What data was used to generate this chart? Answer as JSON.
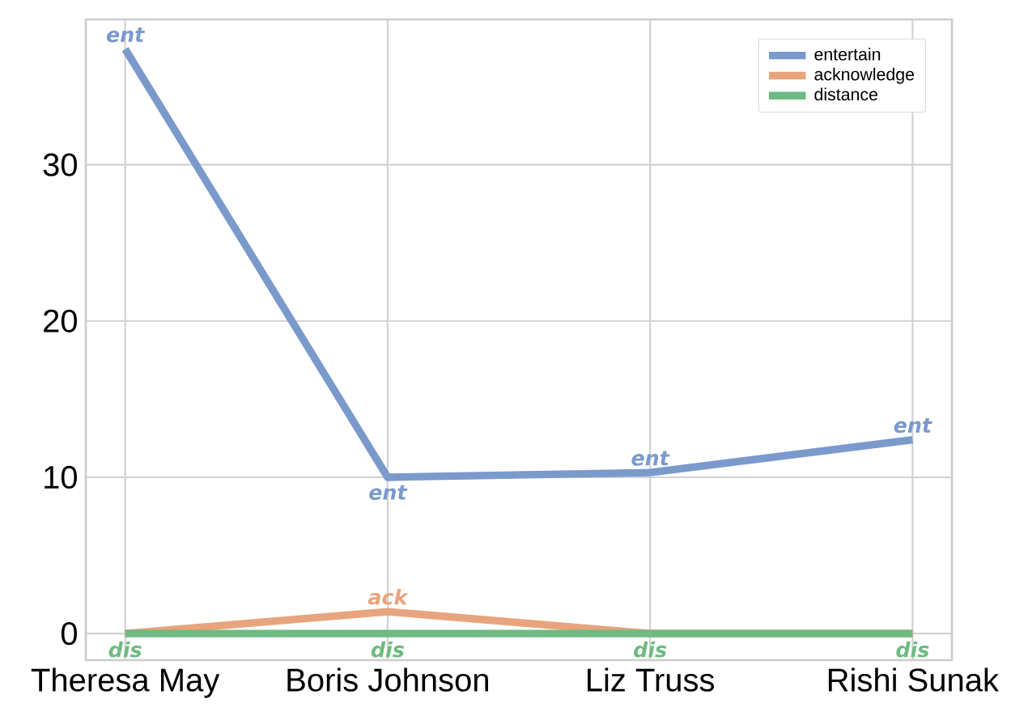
{
  "chart_data": {
    "type": "line",
    "categories": [
      "Theresa May",
      "Boris Johnson",
      "Liz Truss",
      "Rishi Sunak"
    ],
    "series": [
      {
        "name": "entertain",
        "color": "#7b9acc",
        "values": [
          37.4,
          10.0,
          10.3,
          12.4
        ]
      },
      {
        "name": "acknowledge",
        "color": "#e8a47c",
        "values": [
          0,
          1.4,
          0,
          0
        ]
      },
      {
        "name": "distance",
        "color": "#6dbb80",
        "values": [
          0,
          0,
          0,
          0
        ]
      }
    ],
    "ylim": [
      -1.7,
      39.3
    ],
    "yticks": [
      0,
      10,
      20,
      30
    ],
    "grid": true,
    "legend": "top right",
    "annotations": [
      {
        "text": "ent",
        "x": "Theresa May",
        "y": 37.4
      },
      {
        "text": "ent",
        "x": "Boris Johnson",
        "y": 10.0
      },
      {
        "text": "ent",
        "x": "Liz Truss",
        "y": 10.3
      },
      {
        "text": "ent",
        "x": "Rishi Sunak",
        "y": 12.4
      },
      {
        "text": "ack",
        "x": "Boris Johnson",
        "y": 1.4
      },
      {
        "text": "dis",
        "x": "Theresa May",
        "y": 0
      },
      {
        "text": "dis",
        "x": "Boris Johnson",
        "y": 0
      },
      {
        "text": "dis",
        "x": "Liz Truss",
        "y": 0
      },
      {
        "text": "dis",
        "x": "Rishi Sunak",
        "y": 0
      }
    ]
  }
}
